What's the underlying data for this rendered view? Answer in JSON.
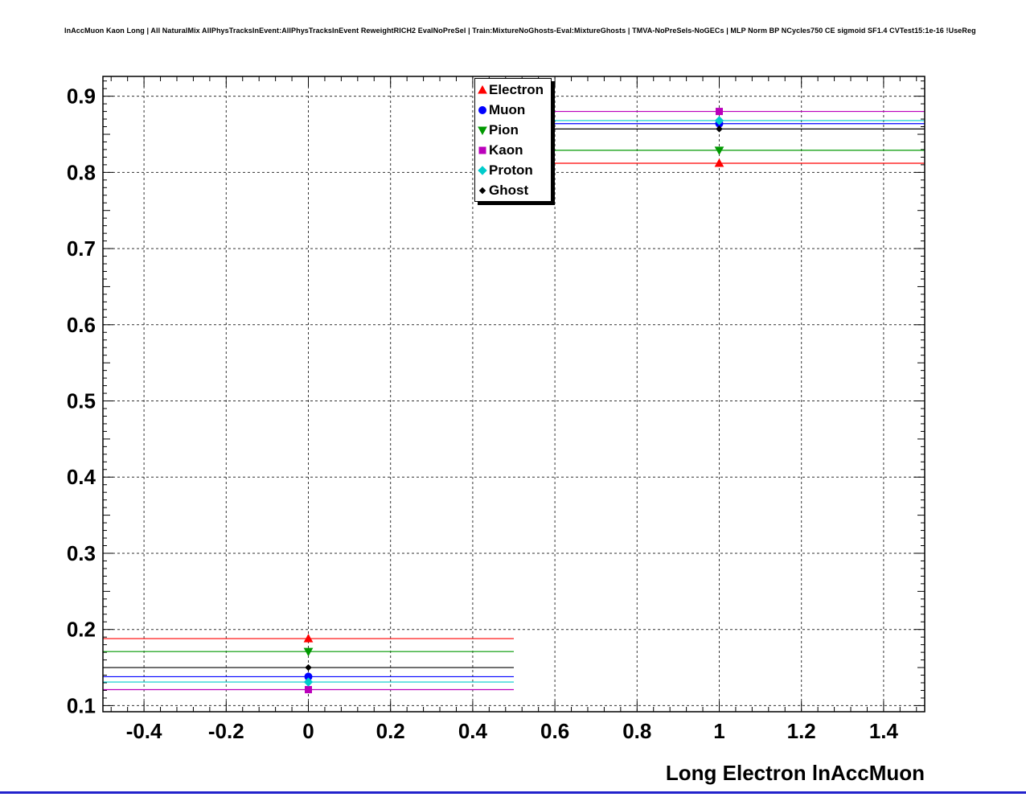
{
  "header": {
    "title": "lnAccMuon Kaon Long | All NaturalMix AllPhysTracksInEvent:AllPhysTracksInEvent ReweightRICH2 EvalNoPreSel | Train:MixtureNoGhosts-Eval:MixtureGhosts | TMVA-NoPreSels-NoGECs | MLP Norm BP NCycles750 CE sigmoid SF1.4 CVTest15:1e-16 !UseReg"
  },
  "chart_data": {
    "type": "line",
    "title": "",
    "xlabel": "Long Electron lnAccMuon",
    "ylabel": "",
    "xlim": [
      -0.5,
      1.5
    ],
    "ylim": [
      0.092,
      0.926
    ],
    "x_ticks": [
      -0.4,
      -0.2,
      0,
      0.2,
      0.4,
      0.6,
      0.8,
      1,
      1.2,
      1.4
    ],
    "y_ticks": [
      0.1,
      0.2,
      0.3,
      0.4,
      0.5,
      0.6,
      0.7,
      0.8,
      0.9
    ],
    "grid": true,
    "grid_style": "dashed",
    "legend_position": "top-center",
    "x": [
      0,
      1
    ],
    "bin_half_width": 0.5,
    "series": [
      {
        "name": "Electron",
        "marker": "triangle-up",
        "color": "#ff0000",
        "values": [
          0.188,
          0.812
        ]
      },
      {
        "name": "Muon",
        "marker": "circle",
        "color": "#0000ff",
        "values": [
          0.138,
          0.864
        ]
      },
      {
        "name": "Pion",
        "marker": "triangle-down",
        "color": "#009900",
        "values": [
          0.171,
          0.829
        ]
      },
      {
        "name": "Kaon",
        "marker": "square",
        "color": "#bb00bb",
        "values": [
          0.121,
          0.88
        ]
      },
      {
        "name": "Proton",
        "marker": "diamond",
        "color": "#00cccc",
        "values": [
          0.131,
          0.868
        ]
      },
      {
        "name": "Ghost",
        "marker": "small-diamond",
        "color": "#000000",
        "values": [
          0.15,
          0.857
        ]
      }
    ]
  },
  "footer": {
    "accent_color": "#2222cc"
  }
}
